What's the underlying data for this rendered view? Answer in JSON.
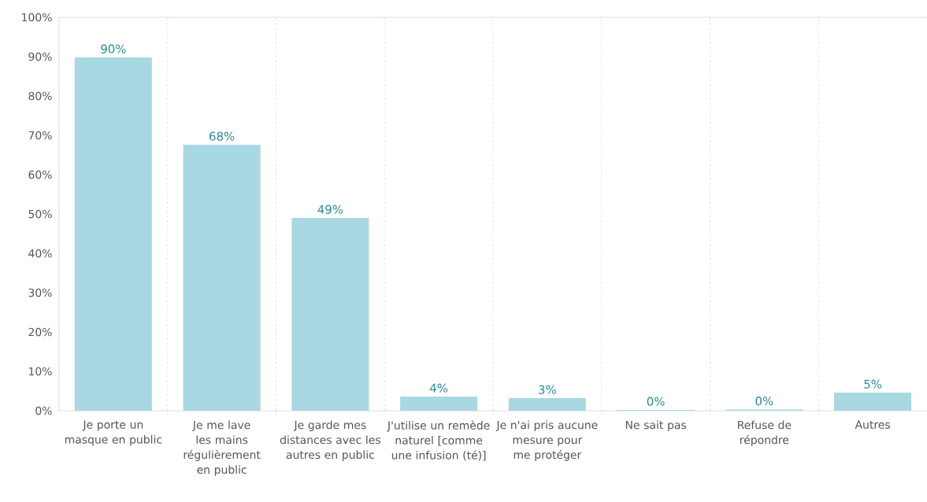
{
  "chart_data": {
    "type": "bar",
    "categories": [
      "Je porte un masque en public",
      "Je me lave les mains régulièrement en public",
      "Je garde mes distances avec les autres en public",
      "J'utilise un remède naturel [comme une infusion (té)]",
      "Je n'ai pris aucune mesure pour me protéger",
      "Ne sait pas",
      "Refuse de répondre",
      "Autres"
    ],
    "values": [
      89.8,
      67.6,
      49,
      3.6,
      3.2,
      0.2,
      0.3,
      4.6
    ],
    "value_labels": [
      "90%",
      "68%",
      "49%",
      "4%",
      "3%",
      "0%",
      "0%",
      "5%"
    ],
    "color": "#a8d8e2",
    "ylim": [
      0,
      100
    ],
    "yticks": [
      {
        "value": 0,
        "label": "0%"
      },
      {
        "value": 10,
        "label": "10%"
      },
      {
        "value": 20,
        "label": "20%"
      },
      {
        "value": 30,
        "label": "30%"
      },
      {
        "value": 40,
        "label": "40%"
      },
      {
        "value": 50,
        "label": "50%"
      },
      {
        "value": 60,
        "label": "60%"
      },
      {
        "value": 70,
        "label": "70%"
      },
      {
        "value": 80,
        "label": "80%"
      },
      {
        "value": 90,
        "label": "90%"
      },
      {
        "value": 100,
        "label": "100%"
      }
    ],
    "grid": "x"
  }
}
